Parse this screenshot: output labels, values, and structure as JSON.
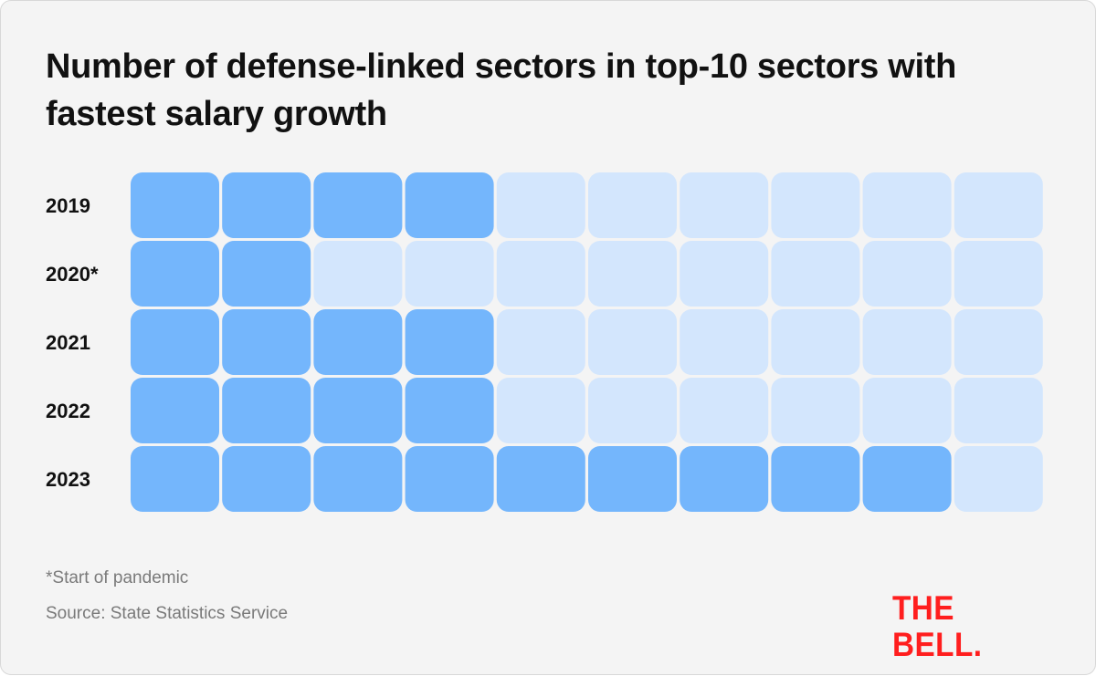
{
  "title": "Number of defense-linked sectors in top-10 sectors with fastest salary growth",
  "footnote": "*Start of pandemic",
  "source": "Source: State Statistics Service",
  "logo_text": "THE BELL.",
  "colors": {
    "background": "#f4f4f4",
    "filled": "#74b6fc",
    "empty": "#d3e6fd",
    "logo": "#ff1e1e"
  },
  "chart_data": {
    "type": "waffle",
    "total_per_row": 10,
    "categories": [
      "2019",
      "2020*",
      "2021",
      "2022",
      "2023"
    ],
    "values": [
      4,
      2,
      4,
      4,
      9
    ]
  }
}
